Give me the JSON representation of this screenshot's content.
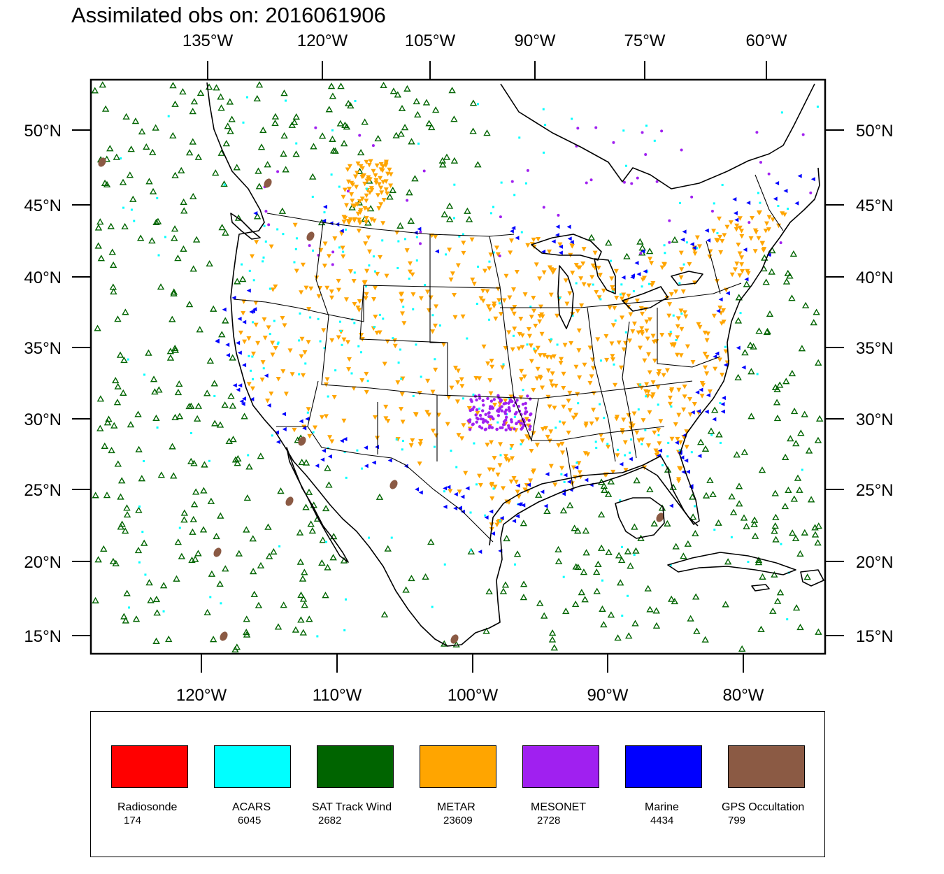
{
  "title": "Assimilated obs on: 2016061906",
  "top_lon_labels": [
    "135°W",
    "120°W",
    "105°W",
    "90°W",
    "75°W",
    "60°W"
  ],
  "bottom_lon_labels": [
    "120°W",
    "110°W",
    "100°W",
    "90°W",
    "80°W"
  ],
  "lat_labels": [
    "50°N",
    "45°N",
    "40°N",
    "35°N",
    "30°N",
    "25°N",
    "20°N",
    "15°N"
  ],
  "legend": [
    {
      "name": "Radiosonde",
      "count": "174",
      "color": "#ff0000"
    },
    {
      "name": "ACARS",
      "count": "6045",
      "color": "#00ffff"
    },
    {
      "name": "SAT Track Wind",
      "count": "2682",
      "color": "#006400"
    },
    {
      "name": "METAR",
      "count": "23609",
      "color": "#ffa500"
    },
    {
      "name": "MESONET",
      "count": "2728",
      "color": "#a020f0"
    },
    {
      "name": "Marine",
      "count": "4434",
      "color": "#0000ff"
    },
    {
      "name": "GPS Occultation",
      "count": "799",
      "color": "#8b5a44"
    }
  ]
}
